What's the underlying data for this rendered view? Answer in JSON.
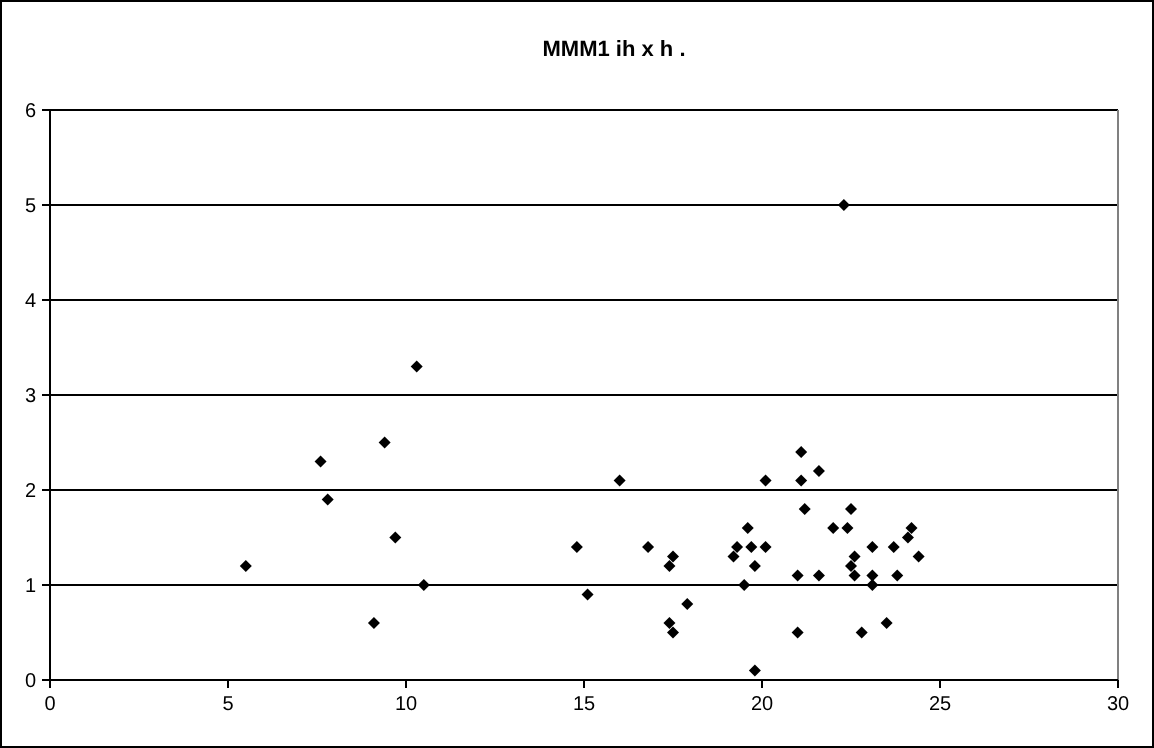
{
  "chart_data": {
    "type": "scatter",
    "title": "MMM1 ih x h .",
    "marker": "diamond",
    "grid": "y",
    "xlim": [
      0,
      30
    ],
    "xticks": [
      0,
      5,
      10,
      15,
      20,
      25,
      30
    ],
    "ylim": [
      0,
      6
    ],
    "yticks": [
      0,
      1,
      2,
      3,
      4,
      5,
      6
    ],
    "series": [
      {
        "color": "#000000",
        "x": [
          10.3,
          9.4,
          7.6,
          7.8,
          9.7,
          5.5,
          10.5,
          9.1,
          16.0,
          20.1,
          21.1,
          21.1,
          21.6,
          21.2,
          19.6,
          14.8,
          16.8,
          19.3,
          19.7,
          20.1,
          17.5,
          17.4,
          19.2,
          19.8,
          19.5,
          21.0,
          21.6,
          15.1,
          17.9,
          17.4,
          17.5,
          21.0,
          19.8,
          22.5,
          22.0,
          22.4,
          23.1,
          23.7,
          24.2,
          24.1,
          24.4,
          22.6,
          22.5,
          22.6,
          23.1,
          23.1,
          23.8,
          22.8,
          23.5,
          22.3
        ],
        "values": [
          3.3,
          2.5,
          2.3,
          1.9,
          1.5,
          1.2,
          1.0,
          0.6,
          2.1,
          2.1,
          2.4,
          2.1,
          2.2,
          1.8,
          1.6,
          1.4,
          1.4,
          1.4,
          1.4,
          1.4,
          1.3,
          1.2,
          1.3,
          1.2,
          1.0,
          1.1,
          1.1,
          0.9,
          0.8,
          0.6,
          0.5,
          0.5,
          0.1,
          1.8,
          1.6,
          1.6,
          1.4,
          1.4,
          1.6,
          1.5,
          1.3,
          1.3,
          1.2,
          1.1,
          1.1,
          1.0,
          1.1,
          0.5,
          0.6,
          5.0
        ]
      }
    ]
  }
}
